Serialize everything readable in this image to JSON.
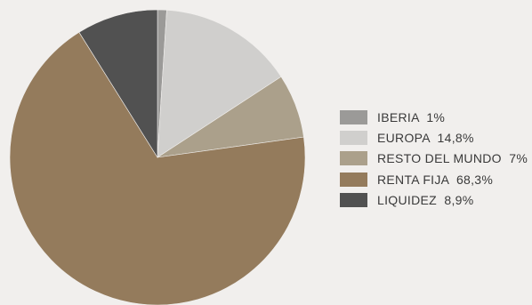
{
  "chart_data": {
    "type": "pie",
    "title": "",
    "legend_position": "right",
    "slices": [
      {
        "label": "IBERIA",
        "value_text": "1%",
        "value": 1.0,
        "color": "#9b9a98"
      },
      {
        "label": "EUROPA",
        "value_text": "14,8%",
        "value": 14.8,
        "color": "#d0cfcd"
      },
      {
        "label": "RESTO DEL MUNDO",
        "value_text": "7%",
        "value": 7.0,
        "color": "#aba08b"
      },
      {
        "label": "RENTA FIJA",
        "value_text": "68,3%",
        "value": 68.3,
        "color": "#947b5c"
      },
      {
        "label": "LIQUIDEZ",
        "value_text": "8,9%",
        "value": 8.9,
        "color": "#515151"
      }
    ]
  }
}
